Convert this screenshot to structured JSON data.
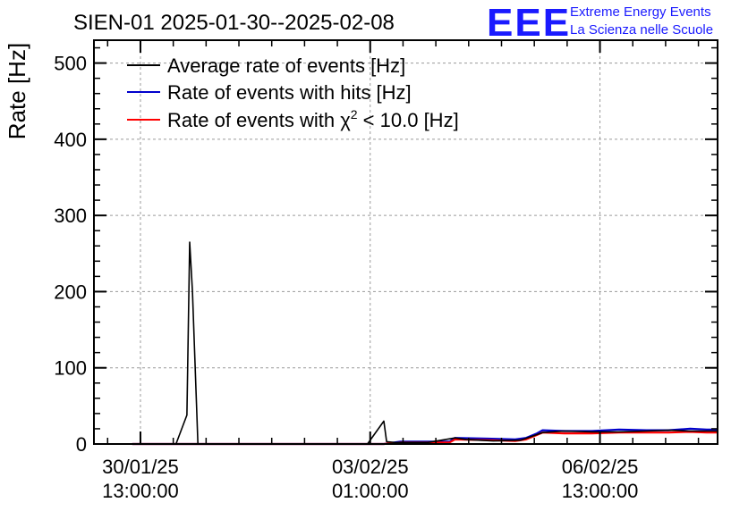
{
  "header": {
    "title": "SIEN-01 2025-01-30--2025-02-08",
    "logo_mark": "EEE",
    "logo_line1": "Extreme Energy Events",
    "logo_line2": "La Scienza nelle Scuole"
  },
  "chart_data": {
    "type": "line",
    "title": "SIEN-01 2025-01-30--2025-02-08",
    "xlabel": "",
    "ylabel": "Rate [Hz]",
    "ylim": [
      0,
      530
    ],
    "xlim": [
      "2025-01-29T20:00:00",
      "2025-02-08T08:00:00"
    ],
    "yticks": [
      0,
      100,
      200,
      300,
      400,
      500
    ],
    "xticks": [
      {
        "x": "2025-01-30T13:00:00",
        "label_date": "30/01/25",
        "label_time": "13:00:00"
      },
      {
        "x": "2025-02-03T01:00:00",
        "label_date": "03/02/25",
        "label_time": "01:00:00"
      },
      {
        "x": "2025-02-06T13:00:00",
        "label_date": "06/02/25",
        "label_time": "13:00:00"
      }
    ],
    "grid": true,
    "legend_position": "top-left",
    "series": [
      {
        "name": "Average rate of events [Hz]",
        "legend_main": "Average rate of events [Hz]",
        "color": "#000000",
        "x": [
          "2025-01-30T10:00:00",
          "2025-01-31T02:00:00",
          "2025-01-31T06:00:00",
          "2025-01-31T07:00:00",
          "2025-01-31T08:00:00",
          "2025-01-31T10:00:00",
          "2025-01-31T12:00:00",
          "2025-01-31T20:00:00",
          "2025-02-01T16:00:00",
          "2025-02-02T20:00:00",
          "2025-02-03T00:00:00",
          "2025-02-03T06:00:00",
          "2025-02-03T07:00:00",
          "2025-02-03T10:00:00",
          "2025-02-03T14:00:00",
          "2025-02-03T22:00:00",
          "2025-02-04T08:00:00",
          "2025-02-04T12:00:00",
          "2025-02-04T22:00:00",
          "2025-02-05T08:00:00",
          "2025-02-05T16:00:00",
          "2025-02-06T00:00:00",
          "2025-02-06T10:00:00",
          "2025-02-06T20:00:00",
          "2025-02-07T06:00:00",
          "2025-02-07T14:00:00",
          "2025-02-07T22:00:00",
          "2025-02-08T04:00:00",
          "2025-02-08T08:00:00"
        ],
        "y": [
          0,
          0,
          38,
          265,
          200,
          0,
          0,
          0,
          0,
          0,
          0,
          30,
          3,
          2,
          2,
          2,
          8,
          6,
          4,
          5,
          15,
          17,
          16,
          16,
          17,
          18,
          17,
          17,
          17
        ]
      },
      {
        "name": "Rate of events with hits [Hz]",
        "legend_main": "Rate of events with hits [Hz]",
        "color": "#0000cc",
        "x": [
          "2025-01-30T10:00:00",
          "2025-02-02T20:00:00",
          "2025-02-03T06:00:00",
          "2025-02-03T12:00:00",
          "2025-02-03T22:00:00",
          "2025-02-04T06:00:00",
          "2025-02-04T08:00:00",
          "2025-02-04T20:00:00",
          "2025-02-05T06:00:00",
          "2025-02-05T10:00:00",
          "2025-02-05T14:00:00",
          "2025-02-05T16:00:00",
          "2025-02-06T00:00:00",
          "2025-02-06T10:00:00",
          "2025-02-06T20:00:00",
          "2025-02-07T06:00:00",
          "2025-02-07T14:00:00",
          "2025-02-07T22:00:00",
          "2025-02-08T04:00:00",
          "2025-02-08T08:00:00"
        ],
        "y": [
          0,
          0,
          0,
          3,
          3,
          3,
          8,
          7,
          6,
          8,
          14,
          18,
          17,
          17,
          19,
          18,
          18,
          20,
          19,
          19
        ]
      },
      {
        "name": "Rate of events with χ² < 10.0 [Hz]",
        "legend_main": "Rate of events with χ",
        "legend_sup": "2",
        "legend_rest": " < 10.0 [Hz]",
        "color": "#ff0000",
        "x": [
          "2025-01-30T10:00:00",
          "2025-02-02T20:00:00",
          "2025-02-03T06:00:00",
          "2025-02-03T12:00:00",
          "2025-02-03T22:00:00",
          "2025-02-04T06:00:00",
          "2025-02-04T08:00:00",
          "2025-02-04T20:00:00",
          "2025-02-05T06:00:00",
          "2025-02-05T10:00:00",
          "2025-02-05T14:00:00",
          "2025-02-05T16:00:00",
          "2025-02-06T00:00:00",
          "2025-02-06T10:00:00",
          "2025-02-06T20:00:00",
          "2025-02-07T06:00:00",
          "2025-02-07T14:00:00",
          "2025-02-07T22:00:00",
          "2025-02-08T04:00:00",
          "2025-02-08T08:00:00"
        ],
        "y": [
          0,
          0,
          0,
          2,
          2,
          2,
          6,
          5,
          4,
          6,
          12,
          15,
          14,
          14,
          15,
          15,
          15,
          16,
          15,
          15
        ]
      }
    ]
  }
}
